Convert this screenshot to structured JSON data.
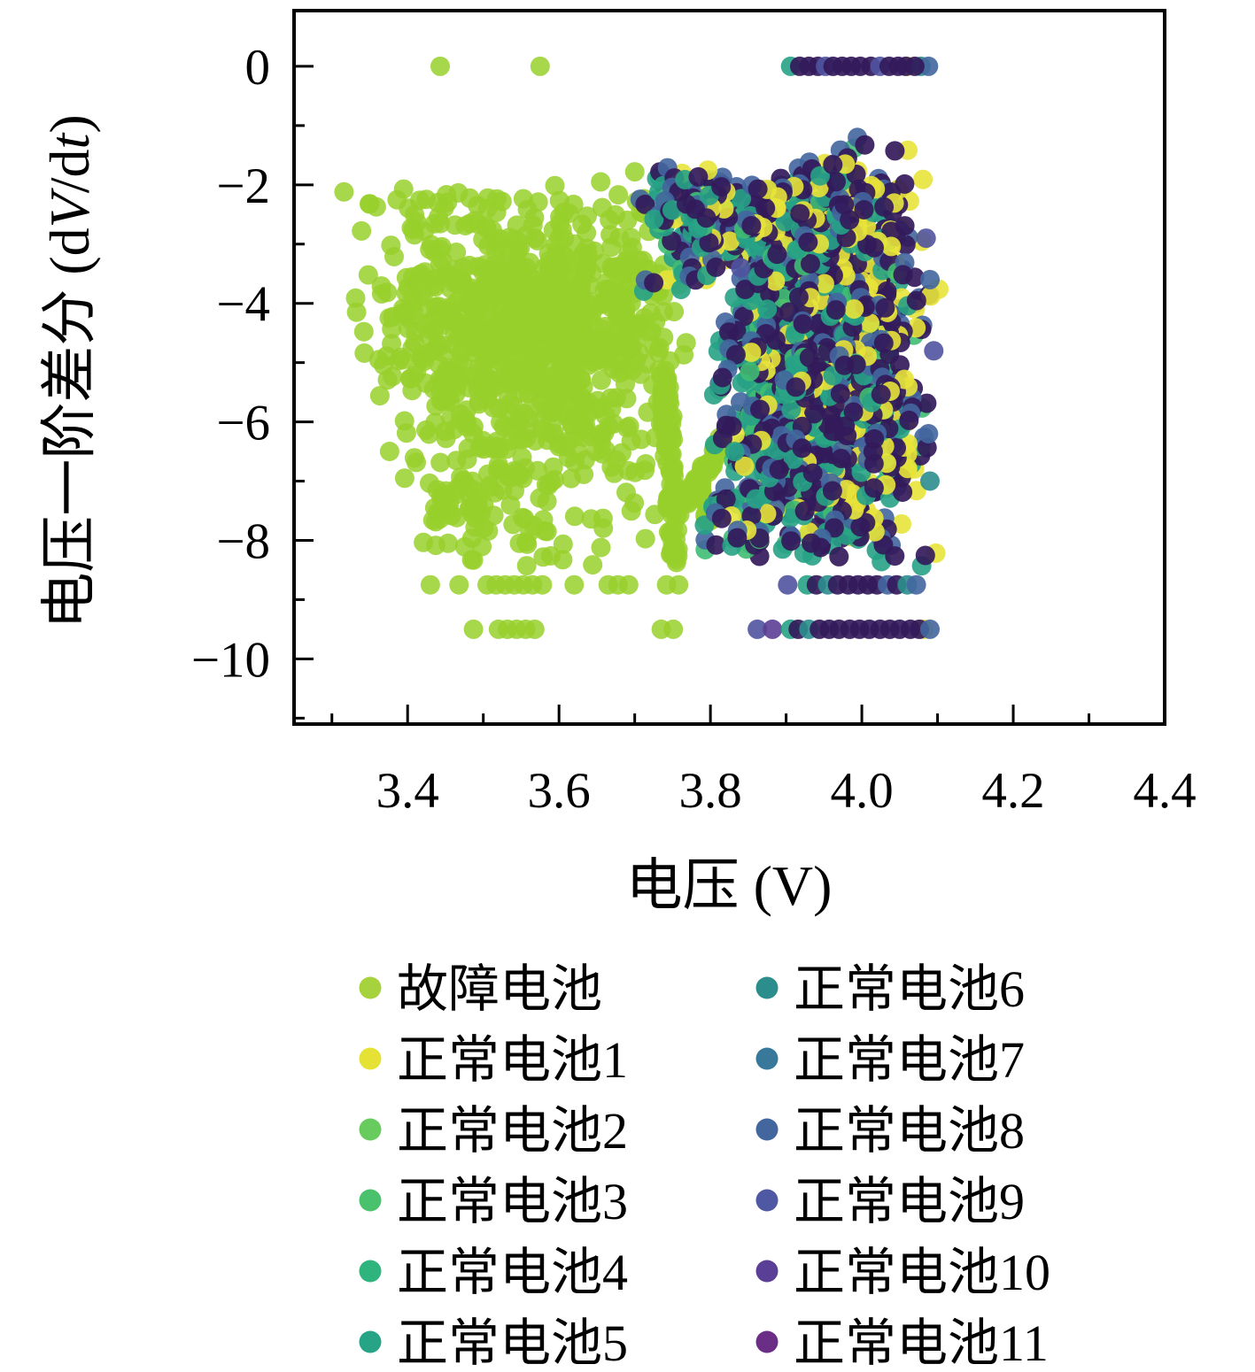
{
  "chart_data": {
    "type": "scatter",
    "title": "",
    "xlabel": "电压 (V)",
    "ylabel": "电压一阶差分 (dV/dt)",
    "ylabel_parts": {
      "prefix": "电压一阶差分 (d",
      "italic1": "V",
      "mid": "/d",
      "italic2": "t",
      "suffix": ")"
    },
    "xlim": [
      3.25,
      4.4
    ],
    "ylim": [
      -11.1,
      0.94
    ],
    "xticks": [
      3.4,
      3.6,
      3.8,
      4.0,
      4.2,
      4.4
    ],
    "xticks_minor": [
      3.3,
      3.5,
      3.7,
      3.9,
      4.1,
      4.3
    ],
    "yticks": [
      0,
      -2,
      -4,
      -6,
      -8,
      -10
    ],
    "yticks_minor": [
      -1,
      -3,
      -5,
      -7,
      -9,
      -11
    ],
    "grid": false,
    "legend_position": "below-plot, two columns",
    "series": [
      {
        "name": "故障电池",
        "color": "#a5d23d"
      },
      {
        "name": "正常电池1",
        "color": "#e5e135"
      },
      {
        "name": "正常电池2",
        "color": "#67cb5d"
      },
      {
        "name": "正常电池3",
        "color": "#4ac16d"
      },
      {
        "name": "正常电池4",
        "color": "#2fb47d"
      },
      {
        "name": "正常电池5",
        "color": "#26a485"
      },
      {
        "name": "正常电池6",
        "color": "#2b8e8d"
      },
      {
        "name": "正常电池7",
        "color": "#37789b"
      },
      {
        "name": "正常电池8",
        "color": "#43669f"
      },
      {
        "name": "正常电池9",
        "color": "#4f58a3"
      },
      {
        "name": "正常电池10",
        "color": "#5b3e95"
      },
      {
        "name": "正常电池11",
        "color": "#6b2e86"
      }
    ],
    "colors": {
      "faulty": {
        "fill": "#98d02c",
        "a": 0.85
      },
      "b1": {
        "fill": "#e8e33a",
        "a": 0.9
      },
      "b3": {
        "fill": "#3fbd72",
        "a": 0.9
      },
      "b5": {
        "fill": "#27a286",
        "a": 0.9
      },
      "b6": {
        "fill": "#2b8e8d",
        "a": 0.9
      },
      "b8": {
        "fill": "#43669f",
        "a": 0.9
      },
      "b9": {
        "fill": "#5053a0",
        "a": 0.9
      },
      "b10": {
        "fill": "#5b3e95",
        "a": 0.9
      },
      "b11": {
        "fill": "#331a5b",
        "a": 0.92
      }
    },
    "stack": [
      {
        "c": "b1",
        "p": 0.45,
        "dx": 0.015,
        "dy": 0.05
      },
      {
        "c": "b3",
        "p": 0.25,
        "dx": -0.008,
        "dy": -0.05
      },
      {
        "c": "b5",
        "p": 0.6,
        "dx": -0.012,
        "dy": -0.12
      },
      {
        "c": "b8",
        "p": 0.5,
        "dx": -0.004,
        "dy": 0.12
      },
      {
        "c": "b11",
        "p": 1.0,
        "dx": 0,
        "dy": 0
      }
    ],
    "clusters": [
      {
        "kind": "gauss",
        "color": "faulty",
        "n": 430,
        "cx": 3.505,
        "cy": -4.4,
        "sx": 0.072,
        "sy": 0.95,
        "clipX": [
          3.33,
          3.72
        ],
        "clipY": [
          -8.3,
          -2.1
        ]
      },
      {
        "kind": "gauss",
        "color": "faulty",
        "n": 400,
        "cx": 3.63,
        "cy": -4.35,
        "sx": 0.068,
        "sy": 1.0,
        "clipX": [
          3.42,
          3.79
        ],
        "clipY": [
          -8.3,
          -2.0
        ]
      },
      {
        "kind": "gauss",
        "color": "faulty",
        "n": 140,
        "cx": 3.57,
        "cy": -6.9,
        "sx": 0.1,
        "sy": 0.8,
        "clipX": [
          3.41,
          3.73
        ],
        "clipY": [
          -8.45,
          -5.2
        ]
      },
      {
        "kind": "gauss",
        "color": "faulty",
        "n": 26,
        "cx": 3.462,
        "cy": -7.15,
        "sx": 0.027,
        "sy": 0.33
      },
      {
        "kind": "line",
        "color": "faulty",
        "n": 90,
        "from": [
          3.739,
          -5.15
        ],
        "to": [
          3.753,
          -8.4
        ],
        "jitter": 0.007
      },
      {
        "kind": "line",
        "color": "faulty",
        "n": 60,
        "from": [
          3.758,
          -7.55
        ],
        "to": [
          3.818,
          -6.32
        ],
        "jitter": 0.007
      },
      {
        "kind": "line",
        "color": "faulty",
        "n": 22,
        "from": [
          3.78,
          -6.95
        ],
        "to": [
          3.802,
          -7.7
        ],
        "jitter": 0.006
      },
      {
        "kind": "uniform",
        "color": "faulty",
        "n": 24,
        "x": [
          3.33,
          3.72
        ],
        "y": [
          -2.8,
          -2.0
        ]
      },
      {
        "kind": "points",
        "color": "faulty",
        "pts": [
          [
            3.443,
            0
          ],
          [
            3.575,
            0
          ],
          [
            3.316,
            -2.12
          ],
          [
            3.35,
            -2.32
          ],
          [
            3.378,
            -3.02
          ],
          [
            3.348,
            -3.52
          ],
          [
            3.362,
            -4.95
          ],
          [
            3.44,
            -2.3
          ],
          [
            3.7,
            -1.78
          ],
          [
            3.655,
            -1.95
          ]
        ]
      },
      {
        "kind": "points",
        "color": "faulty",
        "pts": [
          [
            3.43,
            -8.75
          ],
          [
            3.468,
            -8.75
          ],
          [
            3.505,
            -8.75
          ],
          [
            3.517,
            -8.75
          ],
          [
            3.529,
            -8.75
          ],
          [
            3.541,
            -8.75
          ],
          [
            3.553,
            -8.75
          ],
          [
            3.565,
            -8.75
          ],
          [
            3.578,
            -8.75
          ],
          [
            3.62,
            -8.75
          ],
          [
            3.665,
            -8.75
          ],
          [
            3.678,
            -8.75
          ],
          [
            3.692,
            -8.75
          ],
          [
            3.742,
            -8.75
          ],
          [
            3.758,
            -8.75
          ]
        ]
      },
      {
        "kind": "points",
        "color": "faulty",
        "pts": [
          [
            3.487,
            -9.5
          ],
          [
            3.52,
            -9.5
          ],
          [
            3.532,
            -9.5
          ],
          [
            3.544,
            -9.5
          ],
          [
            3.556,
            -9.5
          ],
          [
            3.568,
            -9.5
          ],
          [
            3.735,
            -9.5
          ],
          [
            3.751,
            -9.5
          ]
        ]
      },
      {
        "kind": "stackgauss",
        "n": 200,
        "cx": 3.945,
        "cy": -3.2,
        "sx": 0.05,
        "sy": 0.75,
        "clipX": [
          3.85,
          4.08
        ],
        "clipY": [
          -4.6,
          -1.85
        ]
      },
      {
        "kind": "stackgauss",
        "n": 420,
        "cx": 3.97,
        "cy": -5.4,
        "sx": 0.05,
        "sy": 1.3,
        "clipX": [
          3.85,
          4.09
        ],
        "clipY": [
          -8.35,
          -2.5
        ]
      },
      {
        "kind": "stackgauss",
        "n": 110,
        "cx": 3.895,
        "cy": -5.6,
        "sx": 0.038,
        "sy": 1.4,
        "clipX": [
          3.835,
          3.98
        ],
        "clipY": [
          -8.3,
          -2.4
        ],
        "stack": [
          {
            "c": "b1",
            "p": 0.35,
            "dx": 0.015,
            "dy": 0.05
          },
          {
            "c": "b3",
            "p": 0.45,
            "dx": -0.01,
            "dy": -0.05
          },
          {
            "c": "b5",
            "p": 0.8,
            "dx": -0.014,
            "dy": -0.13
          },
          {
            "c": "b8",
            "p": 0.55,
            "dx": -0.004,
            "dy": 0.12
          },
          {
            "c": "b11",
            "p": 1.0,
            "dx": 0,
            "dy": 0
          }
        ]
      },
      {
        "kind": "stackgauss",
        "n": 85,
        "cx": 3.925,
        "cy": -2.5,
        "sx": 0.062,
        "sy": 0.42,
        "clipX": [
          3.77,
          4.06
        ],
        "clipY": [
          -3.5,
          -1.75
        ]
      },
      {
        "kind": "stackgauss",
        "n": 50,
        "cx": 3.79,
        "cy": -2.35,
        "sx": 0.05,
        "sy": 0.55,
        "clipX": [
          3.71,
          3.87
        ],
        "clipY": [
          -3.8,
          -1.72
        ]
      },
      {
        "kind": "stackuniform",
        "n": 30,
        "x": [
          3.8,
          3.875
        ],
        "y": [
          -8.3,
          -3.6
        ]
      },
      {
        "kind": "points",
        "pts": [
          [
            3.906,
            0,
            "b5"
          ],
          [
            3.918,
            0,
            "b11"
          ],
          [
            3.93,
            0,
            "b11"
          ],
          [
            3.942,
            0,
            "b11"
          ],
          [
            3.952,
            0,
            "b9"
          ],
          [
            3.962,
            0,
            "b11"
          ],
          [
            3.974,
            0,
            "b11"
          ],
          [
            3.986,
            0,
            "b11"
          ],
          [
            3.998,
            0,
            "b11"
          ],
          [
            4.012,
            0,
            "b11"
          ],
          [
            4.024,
            0,
            "b9"
          ],
          [
            4.036,
            0,
            "b11"
          ],
          [
            4.06,
            0,
            "b1"
          ],
          [
            4.048,
            0,
            "b11"
          ],
          [
            4.058,
            0,
            "b11"
          ],
          [
            4.078,
            0,
            "b6"
          ],
          [
            4.088,
            0,
            "b8"
          ],
          [
            4.07,
            0,
            "b11"
          ]
        ]
      },
      {
        "kind": "points",
        "pts": [
          [
            3.902,
            -8.75,
            "b9"
          ],
          [
            3.928,
            -8.75,
            "b5"
          ],
          [
            3.94,
            -8.75,
            "b11"
          ],
          [
            3.955,
            -8.75,
            "b6"
          ],
          [
            3.968,
            -8.75,
            "b11"
          ],
          [
            3.982,
            -8.75,
            "b11"
          ],
          [
            3.995,
            -8.75,
            "b11"
          ],
          [
            4.008,
            -8.75,
            "b11"
          ],
          [
            4.02,
            -8.75,
            "b11"
          ],
          [
            4.034,
            -8.75,
            "b8"
          ],
          [
            4.046,
            -8.75,
            "b11"
          ],
          [
            4.06,
            -8.75,
            "b6"
          ],
          [
            4.072,
            -8.75,
            "b8"
          ]
        ]
      },
      {
        "kind": "points",
        "pts": [
          [
            3.862,
            -9.5,
            "b9"
          ],
          [
            3.882,
            -9.5,
            "b10"
          ],
          [
            3.906,
            -9.5,
            "b5"
          ],
          [
            3.916,
            -9.5,
            "b11"
          ],
          [
            3.93,
            -9.5,
            "b6"
          ],
          [
            3.944,
            -9.5,
            "b11"
          ],
          [
            3.957,
            -9.5,
            "b11"
          ],
          [
            3.97,
            -9.5,
            "b11"
          ],
          [
            3.984,
            -9.5,
            "b11"
          ],
          [
            3.997,
            -9.5,
            "b11"
          ],
          [
            4.01,
            -9.5,
            "b11"
          ],
          [
            4.024,
            -9.5,
            "b11"
          ],
          [
            4.037,
            -9.5,
            "b11"
          ],
          [
            4.05,
            -9.5,
            "b11"
          ],
          [
            4.082,
            -9.5,
            "b1"
          ],
          [
            4.064,
            -9.5,
            "b11"
          ],
          [
            4.076,
            -9.5,
            "b11"
          ],
          [
            4.09,
            -9.5,
            "b8"
          ]
        ]
      },
      {
        "kind": "stackpoints",
        "pts": [
          [
            4.002,
            -1.33
          ],
          [
            4.045,
            -1.43
          ],
          [
            3.976,
            -1.52
          ],
          [
            3.93,
            -1.72
          ],
          [
            3.958,
            -1.68
          ],
          [
            4.06,
            -1.97
          ]
        ]
      },
      {
        "kind": "points",
        "pts": [
          [
            4.09,
            -3.6,
            "b8"
          ],
          [
            4.095,
            -4.8,
            "b9"
          ],
          [
            4.088,
            -6.2,
            "b8"
          ],
          [
            4.09,
            -7.0,
            "b6"
          ],
          [
            4.085,
            -2.9,
            "b9"
          ]
        ]
      },
      {
        "kind": "points",
        "pts": [
          [
            3.845,
            -6.75,
            "b1"
          ],
          [
            3.832,
            -6.5,
            "b5"
          ],
          [
            3.852,
            -5.15,
            "b3"
          ],
          [
            3.86,
            -7.3,
            "b5"
          ],
          [
            3.875,
            -4.1,
            "b5"
          ],
          [
            3.84,
            -3.4,
            "b9"
          ]
        ]
      }
    ]
  },
  "legend": {
    "columns": 2,
    "rows_per_column": 6
  }
}
